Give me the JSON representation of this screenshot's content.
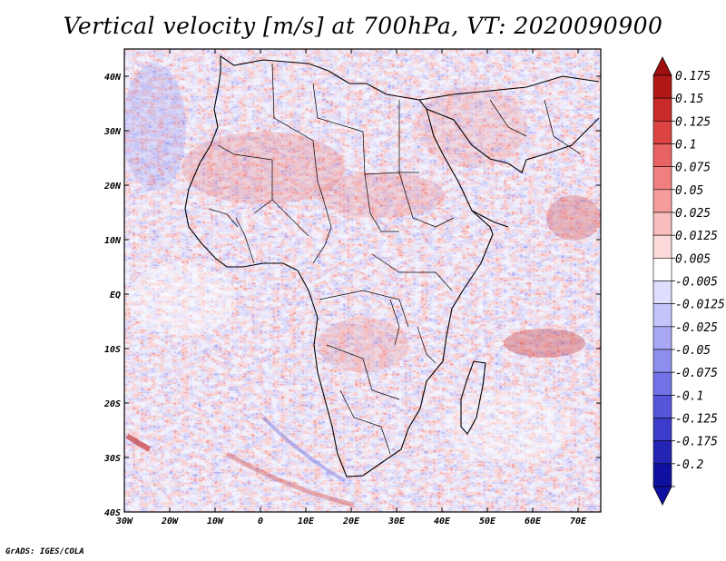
{
  "title": "Vertical velocity [m/s] at 700hPa, VT: 2020090900",
  "credit": "GrADS: IGES/COLA",
  "map": {
    "region": "Africa",
    "field": "Vertical velocity",
    "units": "m/s",
    "level": "700hPa",
    "lon_range": [
      -30,
      75
    ],
    "lat_range": [
      -40,
      45
    ],
    "lon_ticks": [
      {
        "value": -30,
        "label": "30W"
      },
      {
        "value": -20,
        "label": "20W"
      },
      {
        "value": -10,
        "label": "10W"
      },
      {
        "value": 0,
        "label": "0"
      },
      {
        "value": 10,
        "label": "10E"
      },
      {
        "value": 20,
        "label": "20E"
      },
      {
        "value": 30,
        "label": "30E"
      },
      {
        "value": 40,
        "label": "40E"
      },
      {
        "value": 50,
        "label": "50E"
      },
      {
        "value": 60,
        "label": "60E"
      },
      {
        "value": 70,
        "label": "70E"
      }
    ],
    "lat_ticks": [
      {
        "value": 40,
        "label": "40N"
      },
      {
        "value": 30,
        "label": "30N"
      },
      {
        "value": 20,
        "label": "20N"
      },
      {
        "value": 10,
        "label": "10N"
      },
      {
        "value": 0,
        "label": "EQ"
      },
      {
        "value": -10,
        "label": "10S"
      },
      {
        "value": -20,
        "label": "20S"
      },
      {
        "value": -30,
        "label": "30S"
      },
      {
        "value": -40,
        "label": "40S"
      }
    ]
  },
  "colorbar": {
    "levels": [
      {
        "label": "0.175",
        "color": "#b01818"
      },
      {
        "label": "0.15",
        "color": "#c92a2a"
      },
      {
        "label": "0.125",
        "color": "#dc4444"
      },
      {
        "label": "0.1",
        "color": "#e86262"
      },
      {
        "label": "0.075",
        "color": "#f07f7f"
      },
      {
        "label": "0.05",
        "color": "#f59d9d"
      },
      {
        "label": "0.025",
        "color": "#f9bdbd"
      },
      {
        "label": "0.0125",
        "color": "#fcdada"
      },
      {
        "label": "0.005",
        "color": "#ffffff"
      },
      {
        "label": "-0.005",
        "color": "#dedeff"
      },
      {
        "label": "-0.0125",
        "color": "#c4c4fb"
      },
      {
        "label": "-0.025",
        "color": "#a8a8f5"
      },
      {
        "label": "-0.05",
        "color": "#8e8eef"
      },
      {
        "label": "-0.075",
        "color": "#7272e6"
      },
      {
        "label": "-0.1",
        "color": "#5656da"
      },
      {
        "label": "-0.125",
        "color": "#3c3cca"
      },
      {
        "label": "-0.175",
        "color": "#2424b4"
      },
      {
        "label": "-0.2",
        "color": "#1010a0"
      }
    ],
    "top_color": "#a01010",
    "bottom_color": "#1010a0"
  },
  "colors": {
    "background_field": "#eaeaff",
    "updraft": "#e45c5c",
    "downdraft": "#6a6ae8",
    "borders": "#000000"
  }
}
